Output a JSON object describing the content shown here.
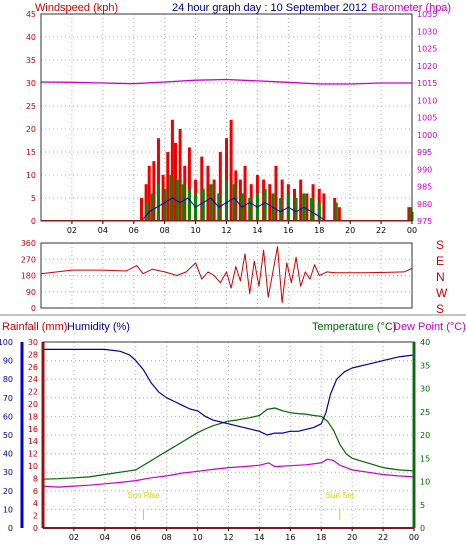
{
  "colors": {
    "wind_title": "#cc0000",
    "baro_title": "#cc00cc",
    "header": "#000080",
    "rain": "#cc0000",
    "humidity": "#000099",
    "temperature": "#006600",
    "dewpoint": "#cc00cc",
    "grid": "#b0b0b0",
    "sun_event": "#d6d600",
    "wind_gust": "#ee0000",
    "wind_avg": "#008800",
    "wind_line": "#0000cc"
  },
  "chart_data": [
    {
      "type": "line",
      "panel": "wind-barometer",
      "header": "24 hour graph day : 10 September 2012",
      "left_title": "Windspeed (kph)",
      "right_title": "Barometer (hpa)",
      "x_ticks": [
        "02",
        "04",
        "06",
        "08",
        "10",
        "12",
        "14",
        "16",
        "18",
        "20",
        "22",
        "00"
      ],
      "x_range": [
        0,
        24
      ],
      "left_ticks": [
        "0",
        "5",
        "10",
        "15",
        "20",
        "25",
        "30",
        "35",
        "40",
        "45"
      ],
      "left_range": [
        0,
        45
      ],
      "right_ticks": [
        "975",
        "980",
        "985",
        "990",
        "995",
        "1000",
        "1005",
        "1010",
        "1015",
        "1020",
        "1025",
        "1030",
        "1035"
      ],
      "right_range": [
        975,
        1035
      ],
      "grid": true,
      "series": [
        {
          "key": "barometer",
          "axis": "right",
          "x": [
            0,
            2,
            4,
            6,
            8,
            10,
            12,
            14,
            16,
            18,
            20,
            22,
            24
          ],
          "y": [
            1015.3,
            1015.2,
            1015.0,
            1014.8,
            1015.3,
            1015.8,
            1016.0,
            1015.6,
            1015.2,
            1014.7,
            1014.7,
            1015.0,
            1015.0
          ]
        },
        {
          "key": "wind_gust",
          "axis": "left",
          "x": [
            0,
            6.3,
            6.5,
            6.8,
            7.0,
            7.3,
            7.6,
            7.9,
            8.2,
            8.5,
            8.7,
            9.0,
            9.3,
            9.6,
            10.0,
            10.4,
            10.8,
            11.2,
            11.6,
            12.0,
            12.3,
            12.6,
            12.9,
            13.2,
            13.6,
            14.0,
            14.4,
            14.8,
            15.2,
            15.6,
            16.0,
            16.4,
            16.8,
            17.2,
            17.6,
            18.0,
            18.3,
            18.6,
            19.0,
            19.3,
            19.6,
            23.8,
            24
          ],
          "y": [
            0,
            0,
            5,
            8,
            12,
            13,
            18,
            10,
            15,
            22,
            17,
            20,
            12,
            16,
            9,
            14,
            12,
            9,
            15,
            18,
            22,
            11,
            9,
            12,
            8,
            10,
            9,
            8,
            12,
            9,
            8,
            7,
            9,
            6,
            8,
            7,
            6,
            0,
            5,
            3,
            0,
            3,
            2
          ]
        },
        {
          "key": "wind_avg",
          "axis": "left",
          "x": [
            0,
            6.4,
            6.8,
            7.2,
            7.6,
            8.0,
            8.4,
            8.8,
            9.2,
            9.6,
            10.0,
            10.5,
            11.0,
            11.5,
            12.0,
            12.5,
            13.0,
            13.5,
            14.0,
            14.5,
            15.0,
            15.5,
            16.0,
            16.5,
            17.0,
            17.5,
            18.0,
            18.4,
            18.8,
            19.1,
            19.4,
            23.9,
            24
          ],
          "y": [
            0,
            0,
            4,
            6,
            8,
            7,
            10,
            9,
            8,
            7,
            6,
            7,
            8,
            6,
            9,
            8,
            6,
            5,
            6,
            7,
            6,
            5,
            6,
            5,
            6,
            5,
            4,
            0,
            0,
            4,
            0,
            3,
            1
          ]
        },
        {
          "key": "wind_line",
          "axis": "left",
          "x": [
            0,
            6.5,
            7.0,
            7.5,
            8.0,
            8.5,
            9.0,
            9.5,
            10.0,
            10.5,
            11.0,
            11.5,
            12.0,
            12.5,
            13.0,
            13.5,
            14.0,
            14.5,
            15.0,
            15.5,
            16.0,
            16.5,
            17.0,
            17.5,
            18.0,
            18.4,
            24
          ],
          "y": [
            0,
            0,
            2,
            3,
            4,
            5,
            4,
            5,
            3,
            4,
            5,
            3,
            4,
            5,
            3,
            4,
            3,
            4,
            3,
            2,
            3,
            2,
            3,
            2,
            1,
            0,
            0
          ]
        }
      ]
    },
    {
      "type": "line",
      "panel": "wind-direction",
      "left_ticks": [
        "0",
        "90",
        "180",
        "270",
        "360"
      ],
      "y_range": [
        0,
        360
      ],
      "x_range": [
        0,
        24
      ],
      "right_labels": [
        "S",
        "E",
        "N",
        "W",
        "S"
      ],
      "grid": true,
      "series": [
        {
          "key": "direction",
          "x": [
            0,
            2,
            4,
            5.5,
            6.2,
            6.6,
            7.2,
            8.0,
            8.8,
            9.4,
            10.0,
            10.4,
            10.8,
            11.2,
            11.6,
            12.0,
            12.3,
            12.6,
            12.9,
            13.2,
            13.5,
            13.8,
            14.1,
            14.4,
            14.7,
            15.0,
            15.3,
            15.6,
            15.9,
            16.2,
            16.5,
            16.8,
            17.1,
            17.4,
            17.7,
            18.0,
            18.5,
            19.0,
            21,
            23.5,
            24
          ],
          "y": [
            190,
            210,
            210,
            205,
            235,
            190,
            215,
            200,
            180,
            200,
            250,
            160,
            200,
            180,
            140,
            200,
            110,
            230,
            150,
            300,
            80,
            260,
            120,
            320,
            60,
            200,
            340,
            30,
            250,
            140,
            280,
            120,
            200,
            160,
            240,
            180,
            200,
            195,
            195,
            200,
            220
          ]
        }
      ]
    },
    {
      "type": "line",
      "panel": "humidity-temperature",
      "left_title": "Rainfall (mm)",
      "humidity_title": "Humidity (%)",
      "temperature_title": "Temperature (°C)",
      "dewpoint_title": "Dew Point (°C)",
      "rain_ticks": [
        "0",
        "2",
        "4",
        "6",
        "8",
        "10",
        "12",
        "14",
        "16",
        "18",
        "20",
        "22",
        "24",
        "26",
        "28",
        "30"
      ],
      "rain_range": [
        0,
        30
      ],
      "humidity_ticks": [
        "0",
        "10",
        "20",
        "30",
        "40",
        "50",
        "60",
        "70",
        "80",
        "90",
        "100"
      ],
      "humidity_range": [
        0,
        100
      ],
      "temperature_ticks": [
        "0",
        "5",
        "10",
        "15",
        "20",
        "25",
        "30",
        "35",
        "40"
      ],
      "temperature_range": [
        0,
        40
      ],
      "x_ticks": [
        "02",
        "04",
        "06",
        "08",
        "10",
        "12",
        "14",
        "16",
        "18",
        "20",
        "22",
        "00"
      ],
      "x_range": [
        0,
        24
      ],
      "annotations": [
        {
          "text": "Sun Rise",
          "x": 6.5
        },
        {
          "text": "Sun Set",
          "x": 19.2
        }
      ],
      "grid": true,
      "series": [
        {
          "key": "humidity",
          "axis": "humidity",
          "x": [
            0,
            1,
            2,
            3,
            4,
            5,
            5.6,
            6.0,
            6.5,
            7.0,
            7.5,
            8.0,
            8.5,
            9.0,
            9.5,
            10.0,
            10.5,
            11.0,
            11.5,
            12.0,
            12.5,
            13.0,
            13.5,
            14.0,
            14.5,
            15.0,
            15.5,
            16.0,
            16.5,
            17.0,
            17.5,
            18.0,
            18.3,
            18.6,
            19.0,
            19.5,
            20,
            21,
            22,
            23,
            24
          ],
          "y": [
            96,
            96,
            96,
            96,
            96,
            95,
            93,
            90,
            85,
            78,
            73,
            70,
            68,
            66,
            64,
            63,
            60,
            58,
            57,
            56,
            55,
            54,
            53,
            52,
            50,
            51,
            51,
            52,
            52,
            53,
            54,
            56,
            62,
            72,
            80,
            84,
            86,
            88,
            90,
            92,
            93
          ]
        },
        {
          "key": "temperature",
          "axis": "temperature",
          "x": [
            0,
            1,
            2,
            3,
            4,
            5,
            6.0,
            6.5,
            7.0,
            7.5,
            8.0,
            8.5,
            9.0,
            9.5,
            10.0,
            10.5,
            11.0,
            11.5,
            12.0,
            12.5,
            13.0,
            13.5,
            14.0,
            14.5,
            15.0,
            15.5,
            16.0,
            16.5,
            17.0,
            17.5,
            18.0,
            18.4,
            18.8,
            19.2,
            19.6,
            20,
            21,
            22,
            23,
            24
          ],
          "y": [
            10.5,
            10.6,
            10.8,
            11.0,
            11.5,
            12.0,
            12.5,
            13.5,
            14.5,
            15.5,
            16.5,
            17.5,
            18.5,
            19.5,
            20.5,
            21.3,
            22.0,
            22.5,
            23.0,
            23.2,
            23.5,
            23.8,
            24.2,
            25.5,
            25.8,
            25.2,
            24.8,
            24.6,
            24.5,
            24.2,
            24.0,
            23.0,
            21.0,
            18.0,
            16.0,
            15.0,
            14.0,
            13.0,
            12.5,
            12.3
          ]
        },
        {
          "key": "dewpoint",
          "axis": "temperature",
          "x": [
            0,
            1,
            2,
            3,
            4,
            5,
            6,
            7,
            8,
            9,
            10,
            11,
            12,
            13,
            14,
            14.6,
            15,
            16,
            17,
            18,
            18.4,
            18.8,
            19.2,
            20,
            21,
            22,
            23,
            24
          ],
          "y": [
            9.0,
            8.8,
            9.0,
            9.2,
            9.5,
            9.8,
            10.2,
            10.8,
            11.2,
            11.8,
            12.2,
            12.6,
            13.0,
            13.2,
            13.5,
            14.0,
            13.2,
            13.4,
            13.6,
            14.0,
            14.8,
            14.5,
            13.5,
            12.5,
            12.0,
            11.5,
            11.2,
            11.0
          ]
        },
        {
          "key": "rainfall",
          "axis": "rain",
          "x": [
            0,
            24
          ],
          "y": [
            0,
            0
          ]
        }
      ]
    }
  ]
}
